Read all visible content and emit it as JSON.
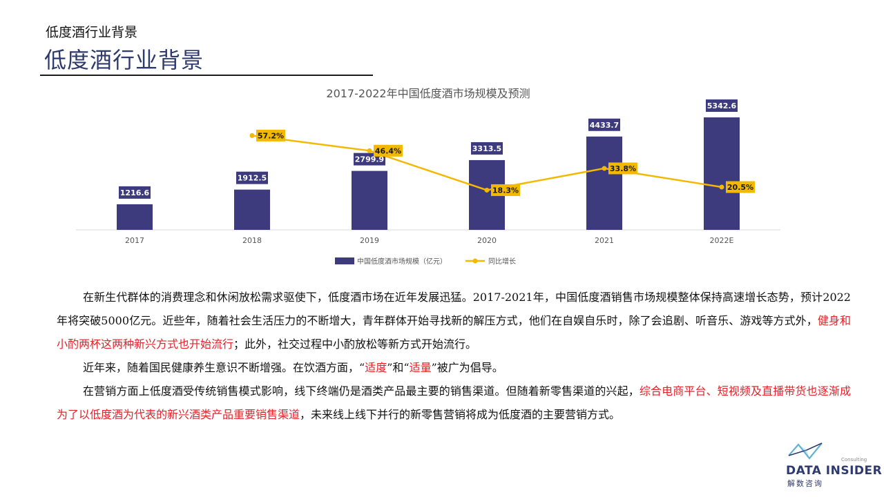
{
  "header": {
    "small_title": "低度酒行业背景",
    "big_title": "低度酒行业背景"
  },
  "chart_data": {
    "type": "bar",
    "title": "2017-2022年中国低度酒市场规模及预测",
    "categories": [
      "2017",
      "2018",
      "2019",
      "2020",
      "2021",
      "2022E"
    ],
    "series": [
      {
        "name": "中国低度酒市场规模（亿元）",
        "type": "bar",
        "values": [
          1216.6,
          1912.5,
          2799.9,
          3313.5,
          4433.7,
          5342.6
        ],
        "labels": [
          "1216.6",
          "1912.5",
          "2799.9",
          "3313.5",
          "4433.7",
          "5342.6"
        ],
        "color": "#3d3b7e"
      },
      {
        "name": "同比增长",
        "type": "line",
        "values": [
          null,
          57.2,
          46.4,
          18.3,
          33.8,
          20.5
        ],
        "labels": [
          "",
          "57.2%",
          "46.4%",
          "18.3%",
          "33.8%",
          "20.5%"
        ],
        "color": "#f3b800"
      }
    ],
    "ylim": [
      0,
      6000
    ],
    "y2lim": [
      -10,
      80
    ],
    "grid": false,
    "legend": "bottom"
  },
  "body": {
    "p1_a": "在新生代群体的消费理念和休闲放松需求驱使下，低度酒市场在近年发展迅猛。2017-2021年，中国低度酒销售市场规模整体保持高速增长态势，预计2022年将突破5000亿元。近些年，随着社会生活压力的不断增大，青年群体开始寻找新的解压方式，他们在自娱自乐时，除了会追剧、听音乐、游戏等方式外，",
    "p1_red": "健身和小酌两杯这两种新兴方式也开始流行",
    "p1_b": "；此外，社交过程中小酌放松等新方式开始流行。",
    "p2_a": "近年来，随着国民健康养生意识不断增强。在饮酒方面，“",
    "p2_red1": "适度",
    "p2_b": "”和“",
    "p2_red2": "适量",
    "p2_c": "”被广为倡导。",
    "p3_a": "在营销方面上低度酒受传统销售模式影响，线下终端仍是酒类产品最主要的销售渠道。但随着新零售渠道的兴起，",
    "p3_red": "综合电商平台、短视频及直播带货也逐渐成为了以低度酒为代表的新兴酒类产品重要销售渠道",
    "p3_b": "，未来线上线下并行的新零售营销将成为低度酒的主要营销方式。"
  },
  "logo": {
    "name": "DATA INSIDER",
    "sub": "解数咨询",
    "consulting": "Consulting",
    "color": "#2e3a6e"
  }
}
